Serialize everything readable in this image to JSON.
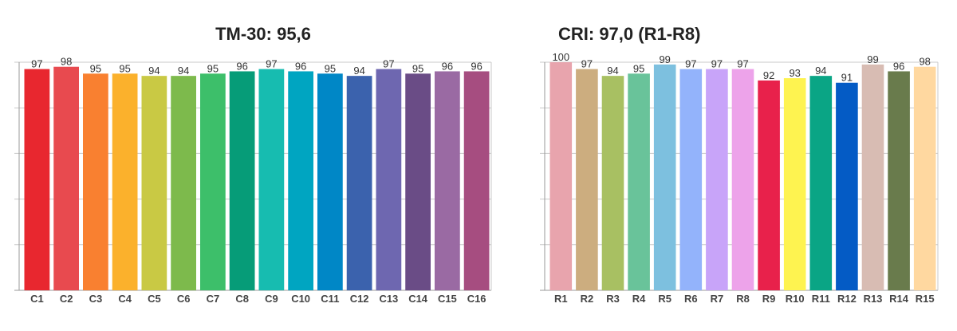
{
  "chart_data": [
    {
      "type": "bar",
      "title": "TM-30: 95,6",
      "categories": [
        "C1",
        "C2",
        "C3",
        "C4",
        "C5",
        "C6",
        "C7",
        "C8",
        "C9",
        "C10",
        "C11",
        "C12",
        "C13",
        "C14",
        "C15",
        "C16"
      ],
      "values": [
        97,
        98,
        95,
        95,
        94,
        94,
        95,
        96,
        97,
        96,
        95,
        94,
        97,
        95,
        96,
        96
      ],
      "colors": [
        "#e8272f",
        "#e84a4f",
        "#f98030",
        "#fbb12c",
        "#c9c944",
        "#7dba4c",
        "#3dbf6a",
        "#069c78",
        "#17bcb0",
        "#00a5c1",
        "#0087c6",
        "#3b62ad",
        "#6e67b0",
        "#6a4c86",
        "#9a6aa3",
        "#a64d80"
      ],
      "ylim": [
        0,
        100
      ],
      "grid": true,
      "data_labels": true
    },
    {
      "type": "bar",
      "title": "CRI: 97,0 (R1-R8)",
      "categories": [
        "R1",
        "R2",
        "R3",
        "R4",
        "R5",
        "R6",
        "R7",
        "R8",
        "R9",
        "R10",
        "R11",
        "R12",
        "R13",
        "R14",
        "R15"
      ],
      "values": [
        100,
        97,
        94,
        95,
        99,
        97,
        97,
        97,
        92,
        93,
        94,
        91,
        99,
        96,
        98
      ],
      "colors": [
        "#e8a4ad",
        "#ccad7f",
        "#a8c062",
        "#69c39a",
        "#7dc0df",
        "#93b3fb",
        "#c8a4f9",
        "#eda3ea",
        "#e8214b",
        "#fef350",
        "#0aa585",
        "#045bc5",
        "#d8bcb3",
        "#697b4c",
        "#ffd8a0"
      ],
      "ylim": [
        0,
        100
      ],
      "grid": true,
      "data_labels": true
    }
  ]
}
